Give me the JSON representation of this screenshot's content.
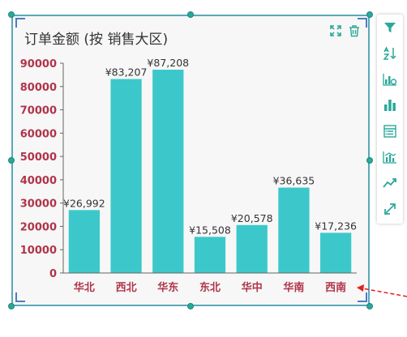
{
  "chart_data": {
    "type": "bar",
    "title": "订单金额 (按 销售大区)",
    "categories": [
      "华北",
      "西北",
      "华东",
      "东北",
      "华中",
      "华南",
      "西南"
    ],
    "values": [
      26992,
      83207,
      87208,
      15508,
      20578,
      36635,
      17236
    ],
    "data_labels": [
      "¥26,992",
      "¥83,207",
      "¥87,208",
      "¥15,508",
      "¥20,578",
      "¥36,635",
      "¥17,236"
    ],
    "y_ticks": [
      "0",
      "10000",
      "20000",
      "30000",
      "40000",
      "50000",
      "60000",
      "70000",
      "80000",
      "90000"
    ],
    "ylim": [
      0,
      90000
    ],
    "grid": false,
    "colors": {
      "bar": "#3cc8cb",
      "tick_label": "#b0344a",
      "axis": "#666666"
    }
  },
  "toolbar": {
    "expand_icon": "expand-icon",
    "delete_icon": "trash-icon"
  },
  "side_toolbar": [
    {
      "name": "filter-icon"
    },
    {
      "name": "sort-icon"
    },
    {
      "name": "chart-settings-icon"
    },
    {
      "name": "bar-chart-icon"
    },
    {
      "name": "table-icon"
    },
    {
      "name": "combo-chart-icon"
    },
    {
      "name": "trend-line-icon"
    },
    {
      "name": "resize-icon"
    }
  ],
  "colors": {
    "frame": "#5aa7ba",
    "handle": "#2aa89a",
    "toolbar_icon": "#2aa89a",
    "arrow": "#e02020"
  }
}
